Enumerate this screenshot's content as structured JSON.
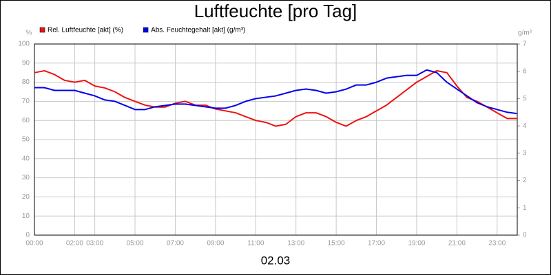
{
  "chart_data": {
    "type": "line",
    "title": "Luftfeuchte [pro Tag]",
    "xlabel": "02.03",
    "ylabel": "%",
    "y2label": "g/m³",
    "x": [
      0,
      0.5,
      1,
      1.5,
      2,
      2.5,
      3,
      3.5,
      4,
      4.5,
      5,
      5.5,
      6,
      6.5,
      7,
      7.5,
      8,
      8.5,
      9,
      9.5,
      10,
      10.5,
      11,
      11.5,
      12,
      12.5,
      13,
      13.5,
      14,
      14.5,
      15,
      15.5,
      16,
      16.5,
      17,
      17.5,
      18,
      18.5,
      19,
      19.5,
      20,
      20.5,
      21,
      21.5,
      22,
      22.5,
      23,
      23.5,
      24
    ],
    "series": [
      {
        "name": "Rel. Luftfeuchte [akt] (%)",
        "color": "#ee1111",
        "values": [
          85,
          86,
          84,
          81,
          80,
          81,
          78,
          77,
          75,
          72,
          70,
          68,
          67,
          67,
          69,
          70,
          68,
          68,
          66,
          65,
          64,
          62,
          60,
          59,
          57,
          58,
          62,
          64,
          64,
          62,
          59,
          57,
          60,
          62,
          65,
          68,
          72,
          76,
          80,
          83,
          86,
          85,
          78,
          72,
          70,
          67,
          64,
          61,
          61
        ]
      },
      {
        "name": "Abs. Feuchtegehalt [akt] (g/m³)",
        "color": "#0000ee",
        "axis": "y2",
        "values": [
          5.4,
          5.4,
          5.3,
          5.3,
          5.3,
          5.2,
          5.1,
          4.95,
          4.9,
          4.75,
          4.6,
          4.6,
          4.7,
          4.75,
          4.8,
          4.8,
          4.75,
          4.7,
          4.65,
          4.65,
          4.75,
          4.9,
          5.0,
          5.05,
          5.1,
          5.2,
          5.3,
          5.35,
          5.3,
          5.2,
          5.25,
          5.35,
          5.5,
          5.5,
          5.6,
          5.75,
          5.8,
          5.85,
          5.85,
          6.05,
          5.95,
          5.6,
          5.35,
          5.1,
          4.85,
          4.7,
          4.6,
          4.5,
          4.45
        ]
      }
    ],
    "xlim": [
      0,
      24
    ],
    "xticks": [
      {
        "value": 0,
        "label": "00:00"
      },
      {
        "value": 2,
        "label": "02:00"
      },
      {
        "value": 3,
        "label": "03:00"
      },
      {
        "value": 5,
        "label": "05:00"
      },
      {
        "value": 7,
        "label": "07:00"
      },
      {
        "value": 9,
        "label": "09:00"
      },
      {
        "value": 11,
        "label": "11:00"
      },
      {
        "value": 13,
        "label": "13:00"
      },
      {
        "value": 15,
        "label": "15:00"
      },
      {
        "value": 17,
        "label": "17:00"
      },
      {
        "value": 19,
        "label": "19:00"
      },
      {
        "value": 21,
        "label": "21:00"
      },
      {
        "value": 23,
        "label": "23:00"
      }
    ],
    "ylim": [
      0,
      100
    ],
    "yticks": [
      0,
      10,
      20,
      30,
      40,
      50,
      60,
      70,
      80,
      90,
      100
    ],
    "y2lim": [
      0,
      7
    ],
    "y2ticks": [
      0,
      1,
      2,
      3,
      4,
      5,
      6,
      7
    ],
    "grid": true
  }
}
